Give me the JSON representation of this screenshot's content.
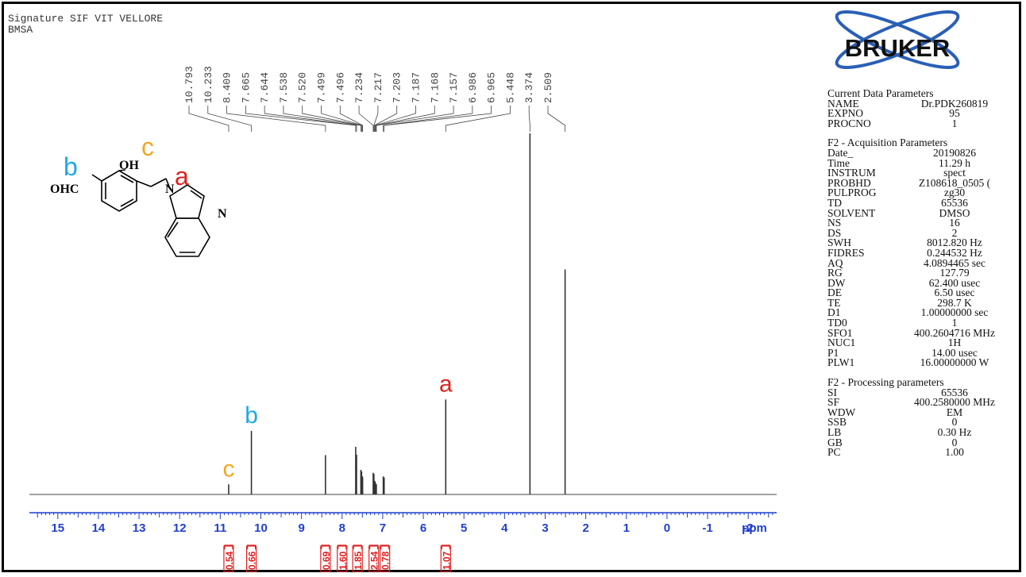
{
  "header": {
    "line1": "Signature SIF VIT VELLORE",
    "line2": "BMSA"
  },
  "logo_text": "BRUKER",
  "structure": {
    "atoms": {
      "oh": "OH",
      "ohc": "OHC",
      "n1": "N",
      "n2": "N"
    },
    "markers": [
      "a",
      "b",
      "c"
    ]
  },
  "params": [
    {
      "title": "Current Data Parameters",
      "rows": [
        [
          "NAME",
          "Dr.PDK260819"
        ],
        [
          "EXPNO",
          "95"
        ],
        [
          "PROCNO",
          "1"
        ]
      ]
    },
    {
      "title": "F2 - Acquisition Parameters",
      "rows": [
        [
          "Date_",
          "20190826"
        ],
        [
          "Time",
          "11.29 h"
        ],
        [
          "INSTRUM",
          "spect"
        ],
        [
          "PROBHD",
          "Z108618_0505 ("
        ],
        [
          "PULPROG",
          "zg30"
        ],
        [
          "TD",
          "65536"
        ],
        [
          "SOLVENT",
          "DMSO"
        ],
        [
          "NS",
          "16"
        ],
        [
          "DS",
          "2"
        ],
        [
          "SWH",
          "8012.820 Hz"
        ],
        [
          "FIDRES",
          "0.244532 Hz"
        ],
        [
          "AQ",
          "4.0894465 sec"
        ],
        [
          "RG",
          "127.79"
        ],
        [
          "DW",
          "62.400 usec"
        ],
        [
          "DE",
          "6.50 usec"
        ],
        [
          "TE",
          "298.7 K"
        ],
        [
          "D1",
          "1.00000000 sec"
        ],
        [
          "TD0",
          "1"
        ],
        [
          "SFO1",
          "400.2604716 MHz"
        ],
        [
          "NUC1",
          "1H"
        ],
        [
          "P1",
          "14.00 usec"
        ],
        [
          "PLW1",
          "16.00000000 W"
        ]
      ]
    },
    {
      "title": "F2 - Processing parameters",
      "rows": [
        [
          "SI",
          "65536"
        ],
        [
          "SF",
          "400.2580000 MHz"
        ],
        [
          "WDW",
          "EM"
        ],
        [
          "SSB",
          "0"
        ],
        [
          "LB",
          "0.30 Hz"
        ],
        [
          "GB",
          "0"
        ],
        [
          "PC",
          "1.00"
        ]
      ]
    }
  ],
  "chart_data": {
    "type": "line",
    "xlabel": "ppm",
    "xlim": [
      15.7,
      -2.7
    ],
    "x_ticks": [
      15,
      14,
      13,
      12,
      11,
      10,
      9,
      8,
      7,
      6,
      5,
      4,
      3,
      2,
      1,
      0,
      -1,
      -2
    ],
    "peak_labels": [
      "10.793",
      "10.233",
      "8.409",
      "7.665",
      "7.644",
      "7.538",
      "7.520",
      "7.499",
      "7.496",
      "7.234",
      "7.217",
      "7.203",
      "7.187",
      "7.168",
      "7.157",
      "6.986",
      "6.965",
      "5.448",
      "3.374",
      "2.509"
    ],
    "peaks": [
      {
        "x": 10.793,
        "h": 0.028
      },
      {
        "x": 10.233,
        "h": 0.176
      },
      {
        "x": 8.409,
        "h": 0.109
      },
      {
        "x": 7.665,
        "h": 0.132
      },
      {
        "x": 7.644,
        "h": 0.11
      },
      {
        "x": 7.538,
        "h": 0.068
      },
      {
        "x": 7.52,
        "h": 0.064
      },
      {
        "x": 7.499,
        "h": 0.05
      },
      {
        "x": 7.496,
        "h": 0.046
      },
      {
        "x": 7.234,
        "h": 0.06
      },
      {
        "x": 7.217,
        "h": 0.057
      },
      {
        "x": 7.203,
        "h": 0.038
      },
      {
        "x": 7.187,
        "h": 0.036
      },
      {
        "x": 7.168,
        "h": 0.03
      },
      {
        "x": 7.157,
        "h": 0.028
      },
      {
        "x": 6.986,
        "h": 0.05
      },
      {
        "x": 6.965,
        "h": 0.047
      },
      {
        "x": 5.448,
        "h": 0.263
      },
      {
        "x": 3.374,
        "h": 1.0
      },
      {
        "x": 2.509,
        "h": 0.623
      }
    ],
    "integrals": [
      {
        "x": 10.793,
        "value": "0.54"
      },
      {
        "x": 10.233,
        "value": "0.66"
      },
      {
        "x": 8.409,
        "value": "0.69"
      },
      {
        "x": 8.0,
        "value": "1.60"
      },
      {
        "x": 7.62,
        "value": "1.85"
      },
      {
        "x": 7.22,
        "value": "2.54"
      },
      {
        "x": 6.97,
        "value": "0.78"
      },
      {
        "x": 5.448,
        "value": "1.07"
      }
    ],
    "annotations": [
      {
        "label": "a",
        "x": 5.448,
        "color": "#e02020"
      },
      {
        "label": "b",
        "x": 10.233,
        "color": "#1ea8e6"
      },
      {
        "label": "c",
        "x": 10.793,
        "color": "#f0a820"
      }
    ]
  }
}
